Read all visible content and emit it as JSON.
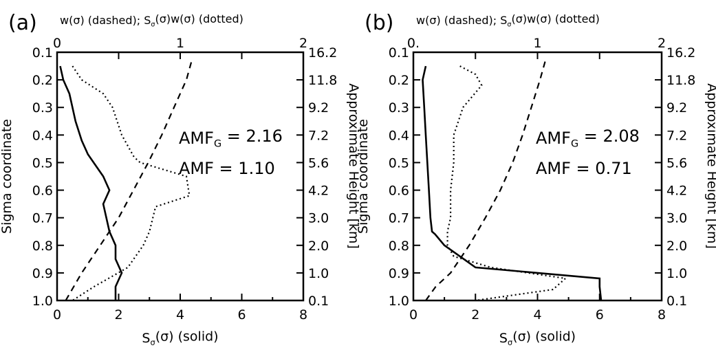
{
  "chart_data": [
    {
      "type": "line",
      "panel_label": "(a)",
      "top_title": "w(σ) (dashed); S(σ)w(σ) (dotted)",
      "xlabel": "S(σ) (solid)",
      "ylabel": "Sigma coordinate",
      "y2label": "Approximate Height [km]",
      "xlim": [
        0,
        8
      ],
      "x_ticks": [
        "0",
        "2",
        "4",
        "6",
        "8"
      ],
      "x2lim": [
        0,
        2
      ],
      "x2_ticks": [
        "0",
        "1",
        "2"
      ],
      "ylim": [
        1.0,
        0.1
      ],
      "y_ticks": [
        "0.1",
        "0.2",
        "0.3",
        "0.4",
        "0.5",
        "0.6",
        "0.7",
        "0.8",
        "0.9",
        "1.0"
      ],
      "y2_ticks": [
        "16.2",
        "11.8",
        "9.2",
        "7.2",
        "5.6",
        "4.2",
        "3.0",
        "2.0",
        "1.0",
        "0.1"
      ],
      "annotations": [
        "AMFG = 2.16",
        "AMF = 1.10"
      ],
      "series": [
        {
          "style": "solid",
          "axis": "bottom",
          "x": [
            0.1,
            0.2,
            0.4,
            0.6,
            0.8,
            1.0,
            1.5,
            1.7,
            1.5,
            1.7,
            1.9,
            1.9,
            2.1,
            1.9,
            1.9
          ],
          "y": [
            0.15,
            0.2,
            0.25,
            0.35,
            0.42,
            0.47,
            0.55,
            0.6,
            0.65,
            0.75,
            0.8,
            0.85,
            0.9,
            0.95,
            1.0
          ]
        },
        {
          "style": "dashed",
          "axis": "top",
          "x": [
            0.07,
            0.2,
            0.35,
            0.5,
            0.62,
            0.74,
            0.85,
            0.95,
            1.05,
            1.1
          ],
          "y": [
            1.0,
            0.9,
            0.8,
            0.7,
            0.6,
            0.5,
            0.4,
            0.3,
            0.2,
            0.12
          ]
        },
        {
          "style": "dotted",
          "axis": "bottom",
          "x": [
            0.5,
            0.8,
            1.5,
            1.8,
            2.1,
            2.5,
            2.7,
            4.2,
            4.3,
            3.2,
            3.0,
            2.8,
            2.3,
            1.2,
            0.5
          ],
          "y": [
            0.15,
            0.2,
            0.25,
            0.3,
            0.4,
            0.48,
            0.5,
            0.55,
            0.62,
            0.66,
            0.75,
            0.8,
            0.88,
            0.95,
            1.0
          ]
        }
      ]
    },
    {
      "type": "line",
      "panel_label": "(b)",
      "top_title": "w(σ) (dashed); S(σ)w(σ) (dotted)",
      "xlabel": "S(σ) (solid)",
      "ylabel": "Sigma coordinate",
      "y2label": "Approximate Height [km]",
      "xlim": [
        0,
        8
      ],
      "x_ticks": [
        "0",
        "2",
        "4",
        "6",
        "8"
      ],
      "x2lim": [
        0,
        2
      ],
      "x2_ticks": [
        "0.",
        "1",
        "2"
      ],
      "ylim": [
        1.0,
        0.1
      ],
      "y_ticks": [
        "0.1",
        "0.2",
        "0.3",
        "0.4",
        "0.5",
        "0.6",
        "0.7",
        "0.8",
        "0.9",
        "1.0"
      ],
      "y2_ticks": [
        "16.2",
        "11.8",
        "9.2",
        "7.2",
        "5.6",
        "4.2",
        "3.0",
        "2.0",
        "1.0",
        "0.1"
      ],
      "annotations": [
        "AMFG = 2.08",
        "AMF = 0.71"
      ],
      "series": [
        {
          "style": "solid",
          "axis": "bottom",
          "x": [
            0.4,
            0.3,
            0.35,
            0.4,
            0.45,
            0.5,
            0.55,
            0.6,
            0.7,
            1.0,
            1.5,
            2.0,
            6.0,
            6.0,
            6.05
          ],
          "y": [
            0.15,
            0.2,
            0.3,
            0.4,
            0.5,
            0.6,
            0.7,
            0.75,
            0.76,
            0.8,
            0.84,
            0.88,
            0.92,
            0.95,
            1.0
          ]
        },
        {
          "style": "dashed",
          "axis": "top",
          "x": [
            0.1,
            0.18,
            0.3,
            0.45,
            0.58,
            0.7,
            0.8,
            0.88,
            0.95,
            1.02,
            1.07
          ],
          "y": [
            1.0,
            0.95,
            0.9,
            0.8,
            0.7,
            0.6,
            0.5,
            0.4,
            0.3,
            0.2,
            0.12
          ]
        },
        {
          "style": "dotted",
          "axis": "bottom",
          "x": [
            1.5,
            2.0,
            2.2,
            1.6,
            1.3,
            1.3,
            1.2,
            1.2,
            1.1,
            1.1,
            1.3,
            2.5,
            4.9,
            4.5,
            2.0
          ],
          "y": [
            0.15,
            0.18,
            0.22,
            0.3,
            0.4,
            0.5,
            0.6,
            0.7,
            0.75,
            0.8,
            0.84,
            0.88,
            0.92,
            0.96,
            1.0
          ]
        }
      ]
    }
  ]
}
